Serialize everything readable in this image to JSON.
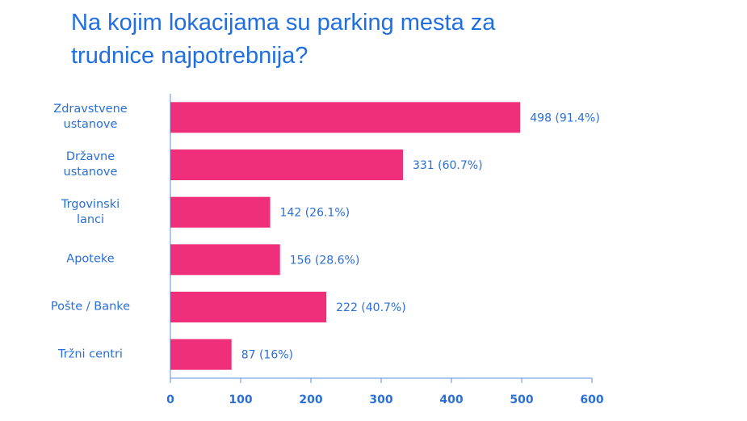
{
  "chart_data": {
    "type": "bar",
    "orientation": "horizontal",
    "title": "Na kojim lokacijama su parking mesta za\ntrudnice najpotrebnija?",
    "categories": [
      "Zdravstvene\nustanove",
      "Državne\nustanove",
      "Trgovinski\nlanci",
      "Apoteke",
      "Pošte / Banke",
      "Tržni centri"
    ],
    "values": [
      498,
      331,
      142,
      156,
      222,
      87
    ],
    "value_labels": [
      "498 (91.4%)",
      "331 (60.7%)",
      "142 (26.1%)",
      "156 (28.6%)",
      "222 (40.7%)",
      "87 (16%)"
    ],
    "color": "#ef2f79",
    "xlim": [
      0,
      600
    ],
    "xticks": [
      0,
      100,
      200,
      300,
      400,
      500,
      600
    ],
    "grid": false
  }
}
